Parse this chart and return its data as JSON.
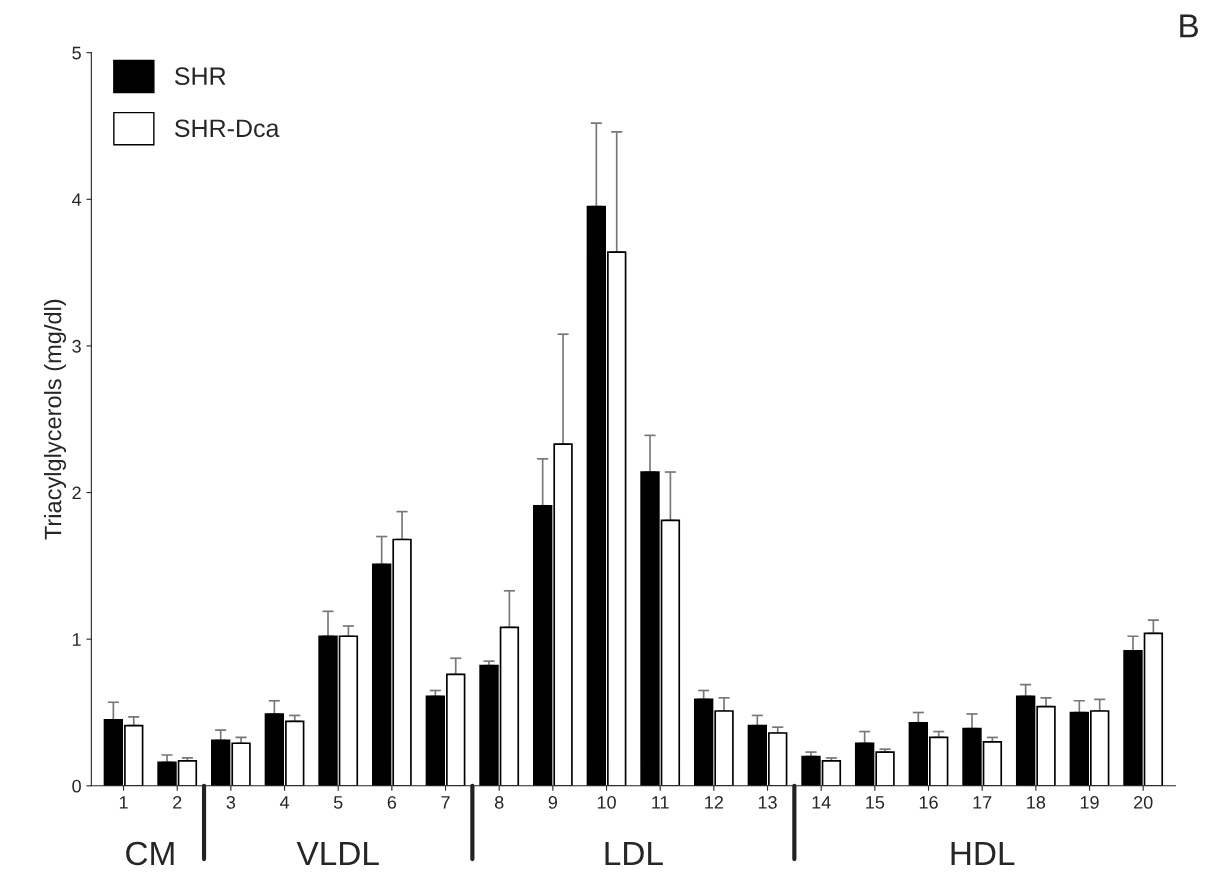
{
  "chart_data": {
    "type": "bar",
    "ylabel": "Triacylglycerols (mg/dl)",
    "categories": [
      "1",
      "2",
      "3",
      "4",
      "5",
      "6",
      "7",
      "8",
      "9",
      "10",
      "11",
      "12",
      "13",
      "14",
      "15",
      "16",
      "17",
      "18",
      "19",
      "20"
    ],
    "series": [
      {
        "name": "SHR",
        "color": "#000000",
        "values": [
          0.45,
          0.16,
          0.31,
          0.49,
          1.02,
          1.51,
          0.61,
          0.82,
          1.91,
          3.95,
          2.14,
          0.59,
          0.41,
          0.2,
          0.29,
          0.43,
          0.39,
          0.61,
          0.5,
          0.92
        ],
        "errors": [
          [
            0.45,
            0.57
          ],
          [
            0.16,
            0.21
          ],
          [
            0.31,
            0.38
          ],
          [
            0.49,
            0.58
          ],
          [
            1.02,
            1.19
          ],
          [
            1.51,
            1.7
          ],
          [
            0.61,
            0.65
          ],
          [
            0.82,
            0.85
          ],
          [
            1.91,
            2.23
          ],
          [
            3.95,
            4.52
          ],
          [
            2.14,
            2.39
          ],
          [
            0.59,
            0.65
          ],
          [
            0.41,
            0.48
          ],
          [
            0.2,
            0.23
          ],
          [
            0.29,
            0.37
          ],
          [
            0.43,
            0.5
          ],
          [
            0.39,
            0.49
          ],
          [
            0.61,
            0.69
          ],
          [
            0.5,
            0.58
          ],
          [
            0.92,
            1.02
          ]
        ]
      },
      {
        "name": "SHR-Dca",
        "color": "#ffffff",
        "values": [
          0.41,
          0.17,
          0.29,
          0.44,
          1.02,
          1.68,
          0.76,
          1.08,
          2.33,
          3.64,
          1.81,
          0.51,
          0.36,
          0.17,
          0.23,
          0.33,
          0.3,
          0.54,
          0.51,
          1.04
        ],
        "errors": [
          [
            0.41,
            0.47
          ],
          [
            0.17,
            0.19
          ],
          [
            0.29,
            0.33
          ],
          [
            0.44,
            0.48
          ],
          [
            1.02,
            1.09
          ],
          [
            1.68,
            1.87
          ],
          [
            0.76,
            0.87
          ],
          [
            1.08,
            1.33
          ],
          [
            2.33,
            3.08
          ],
          [
            3.64,
            4.46
          ],
          [
            1.81,
            2.14
          ],
          [
            0.51,
            0.6
          ],
          [
            0.36,
            0.4
          ],
          [
            0.17,
            0.19
          ],
          [
            0.23,
            0.25
          ],
          [
            0.33,
            0.37
          ],
          [
            0.3,
            0.33
          ],
          [
            0.54,
            0.6
          ],
          [
            0.51,
            0.59
          ],
          [
            1.04,
            1.13
          ]
        ]
      }
    ],
    "ylim": [
      0,
      5
    ],
    "yticks": [
      0,
      1,
      2,
      3,
      4,
      5
    ],
    "grid": false,
    "legend": "top left",
    "annotations": [
      "CM",
      "VLDL",
      "LDL",
      "HDL",
      "B"
    ]
  }
}
